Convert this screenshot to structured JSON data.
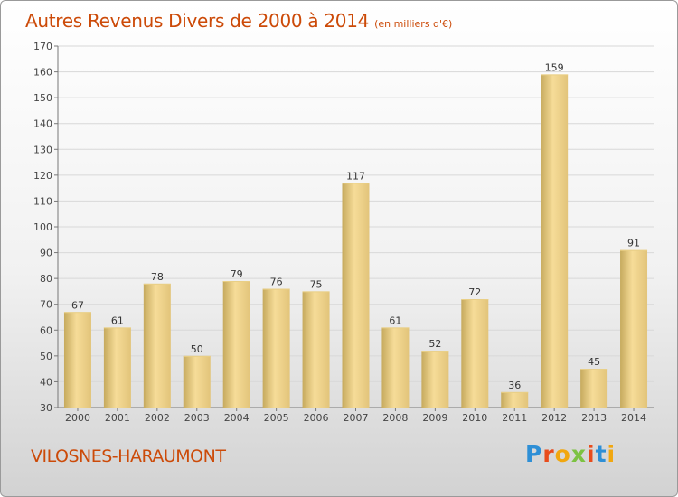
{
  "header": {
    "title": "Autres Revenus Divers de 2000 à 2014",
    "unit": "(en milliers d'€)"
  },
  "footer": {
    "commune": "VILOSNES-HARAUMONT",
    "brand_letters": [
      "P",
      "r",
      "o",
      "x",
      "i",
      "t",
      "i"
    ],
    "brand_colors": [
      "#2e8fd6",
      "#e84c1c",
      "#f1a70f",
      "#7cc242",
      "#e84c1c",
      "#2e8fd6",
      "#f1a70f"
    ]
  },
  "colors": {
    "bar_light": "#f6dc98",
    "bar_dark": "#c6aa5e",
    "grid": "#d8d8d8",
    "title": "#cc4a08"
  },
  "chart_data": {
    "type": "bar",
    "title": "Autres Revenus Divers de 2000 à 2014",
    "xlabel": "",
    "ylabel": "",
    "categories": [
      "2000",
      "2001",
      "2002",
      "2003",
      "2004",
      "2005",
      "2006",
      "2007",
      "2008",
      "2009",
      "2010",
      "2011",
      "2012",
      "2013",
      "2014"
    ],
    "values": [
      67,
      61,
      78,
      50,
      79,
      76,
      75,
      117,
      61,
      52,
      72,
      36,
      159,
      45,
      91
    ],
    "ylim": [
      30,
      170
    ],
    "yticks": [
      30,
      40,
      50,
      60,
      70,
      80,
      90,
      100,
      110,
      120,
      130,
      140,
      150,
      160,
      170
    ],
    "grid": true,
    "legend": "none"
  }
}
